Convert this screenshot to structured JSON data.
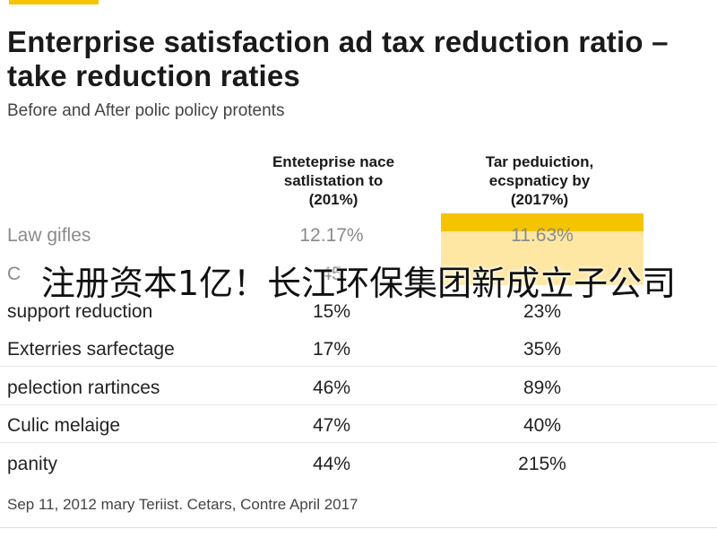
{
  "header": {
    "title": "Enterprise satisfaction ad tax reduction ratio – take reduction raties",
    "subtitle": "Before and After polic policy protents"
  },
  "chart_data": {
    "type": "table",
    "columns": [
      "Enteteprise nace\nsatlistation to\n(201%)",
      "Tar peduiction,\necspnaticy by\n(2017%)"
    ],
    "rows": [
      {
        "label": "Law gifles",
        "values": [
          "12.17%",
          "11.63%"
        ]
      },
      {
        "label": "C",
        "values": [
          "45",
          ""
        ]
      },
      {
        "label": "support reduction",
        "values": [
          "15%",
          "23%"
        ]
      },
      {
        "label": "Exterries sarfectage",
        "values": [
          "17%",
          "35%"
        ]
      },
      {
        "label": "pelection rartinces",
        "values": [
          "46%",
          "89%"
        ]
      },
      {
        "label": "Culic melaige",
        "values": [
          "47%",
          "40%"
        ]
      },
      {
        "label": "panity",
        "values": [
          "44%",
          "215%"
        ]
      }
    ],
    "highlight_column": 1,
    "highlight_color": "#f5c400",
    "footnote": "Sep 11, 2012 mary Teriist. Cetars, Contre April 2017"
  },
  "overlay": {
    "text": "注册资本1亿！长江环保集团新成立子公司"
  },
  "colors": {
    "accent": "#f5c400",
    "highlight_fill": "#fde7a3"
  }
}
